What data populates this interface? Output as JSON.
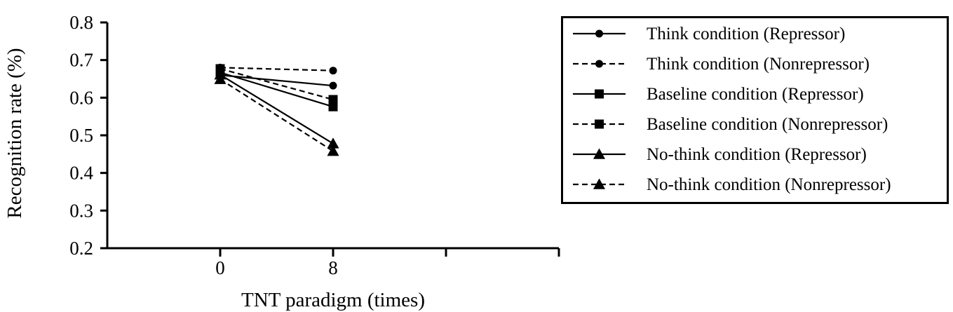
{
  "chart_data": {
    "type": "line",
    "title": "",
    "xlabel": "TNT paradigm (times)",
    "ylabel": "Recognition rate (%)",
    "categories": [
      "0",
      "8"
    ],
    "ylim": [
      0.2,
      0.8
    ],
    "yticks": [
      "0.2",
      "0.3",
      "0.4",
      "0.5",
      "0.6",
      "0.7",
      "0.8"
    ],
    "grid": false,
    "legend_position": "right",
    "series": [
      {
        "name": "Think condition (Repressor)",
        "values": [
          0.66,
          0.632
        ],
        "marker": "circle",
        "dash": "solid"
      },
      {
        "name": "Think condition (Nonrepressor)",
        "values": [
          0.68,
          0.672
        ],
        "marker": "circle",
        "dash": "dashed"
      },
      {
        "name": "Baseline condition (Repressor)",
        "values": [
          0.667,
          0.576
        ],
        "marker": "square",
        "dash": "solid"
      },
      {
        "name": "Baseline condition (Nonrepressor)",
        "values": [
          0.677,
          0.595
        ],
        "marker": "square",
        "dash": "dashed"
      },
      {
        "name": "No-think condition (Repressor)",
        "values": [
          0.661,
          0.478
        ],
        "marker": "triangle",
        "dash": "solid"
      },
      {
        "name": "No-think condition (Nonrepressor)",
        "values": [
          0.649,
          0.458
        ],
        "marker": "triangle",
        "dash": "dashed"
      }
    ]
  }
}
